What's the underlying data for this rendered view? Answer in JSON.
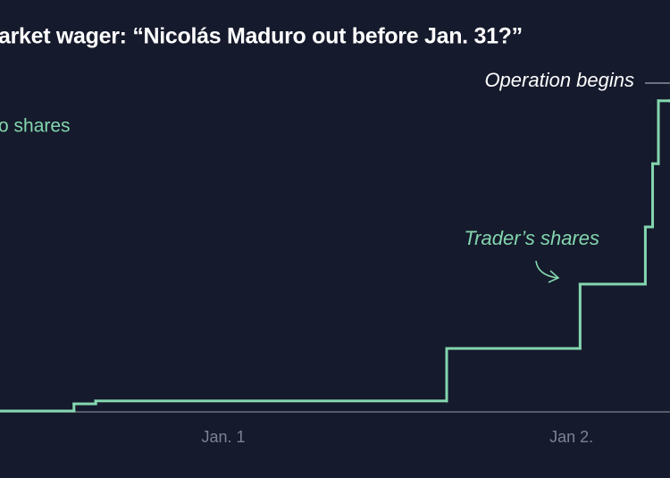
{
  "chart_data": {
    "type": "line",
    "title": "arket wager: “Nicolás Maduro out before Jan. 31?”",
    "y_label": "o shares",
    "annotations": [
      "Operation begins",
      "Trader’s shares"
    ],
    "x": [
      -15.4,
      -10.3,
      -8.8,
      15.4,
      24.6,
      29.1,
      29.6,
      30.0,
      30.8
    ],
    "series": [
      {
        "name": "Trader’s shares",
        "color": "#84d6ae",
        "values": [
          0,
          1000,
          1400,
          8750,
          17750,
          25750,
          34600,
          43400,
          43400
        ]
      }
    ],
    "xlim": [
      -15.4,
      30.8
    ],
    "xticks": [
      {
        "value": 0,
        "label": "Jan. 1"
      },
      {
        "value": 24,
        "label": "Jan 2."
      }
    ],
    "ylim": [
      0,
      57500
    ],
    "step": true
  }
}
